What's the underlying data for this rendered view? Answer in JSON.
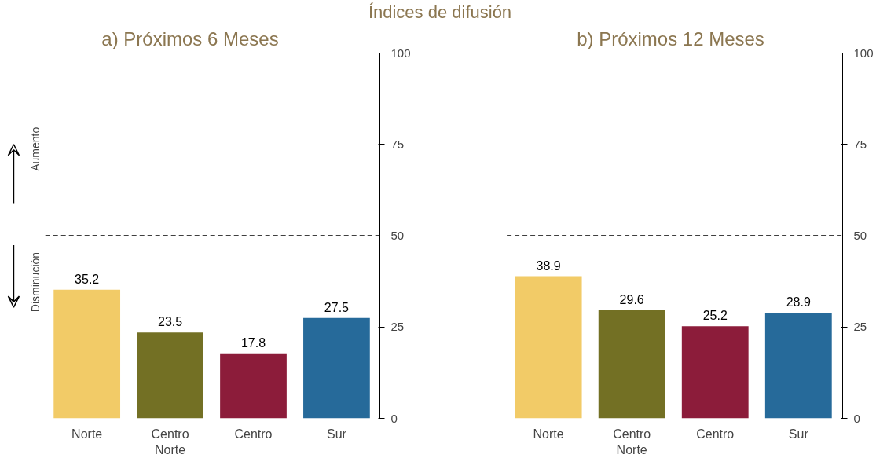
{
  "chart_data": [
    {
      "type": "bar",
      "title": "a) Próximos 6 Meses",
      "categories": [
        "Norte",
        "Centro Norte",
        "Centro",
        "Sur"
      ],
      "values": [
        35.2,
        23.5,
        17.8,
        27.5
      ],
      "colors": [
        "#f2cb67",
        "#737024",
        "#8c1c3a",
        "#266a9a"
      ],
      "ylim": [
        0,
        100
      ],
      "yticks": [
        0,
        25,
        50,
        75,
        100
      ],
      "ref_lines": [
        {
          "axis": "y",
          "value": 50,
          "line_style": "dashed",
          "color": "#000000"
        }
      ],
      "data_labels": true,
      "grid": false,
      "annotations": [
        "Índices de difusión",
        "Aumento",
        "Disminución"
      ]
    },
    {
      "type": "bar",
      "title": "b) Próximos 12 Meses",
      "categories": [
        "Norte",
        "Centro Norte",
        "Centro",
        "Sur"
      ],
      "values": [
        38.9,
        29.6,
        25.2,
        28.9
      ],
      "colors": [
        "#f2cb67",
        "#737024",
        "#8c1c3a",
        "#266a9a"
      ],
      "ylim": [
        0,
        100
      ],
      "yticks": [
        0,
        25,
        50,
        75,
        100
      ],
      "ref_lines": [
        {
          "axis": "y",
          "value": 50,
          "line_style": "dashed",
          "color": "#000000"
        }
      ],
      "data_labels": true,
      "grid": false
    }
  ]
}
